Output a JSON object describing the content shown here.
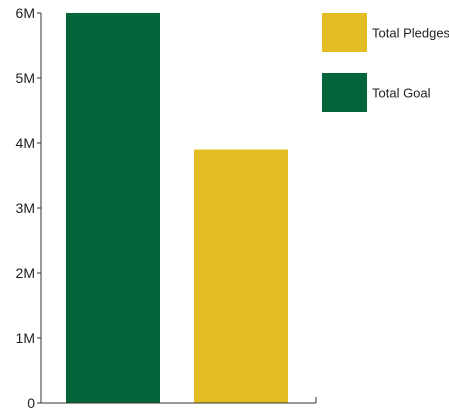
{
  "chart_data": {
    "type": "bar",
    "series": [
      {
        "name": "Total Goal",
        "value": 6000000,
        "color": "#02663a"
      },
      {
        "name": "Total Pledges",
        "value": 3900000,
        "color": "#e4bd24"
      }
    ],
    "ylim": [
      0,
      6000000
    ],
    "yticks": [
      {
        "value": 0,
        "label": "0"
      },
      {
        "value": 1000000,
        "label": "1M"
      },
      {
        "value": 2000000,
        "label": "2M"
      },
      {
        "value": 3000000,
        "label": "3M"
      },
      {
        "value": 4000000,
        "label": "4M"
      },
      {
        "value": 5000000,
        "label": "5M"
      },
      {
        "value": 6000000,
        "label": "6M"
      }
    ],
    "legend": {
      "placement": "top-right",
      "items": [
        {
          "label": "Total Pledges",
          "color": "#e4bd24"
        },
        {
          "label": "Total Goal",
          "color": "#02663a"
        }
      ]
    },
    "grid": false,
    "axis_color": "#333333"
  }
}
